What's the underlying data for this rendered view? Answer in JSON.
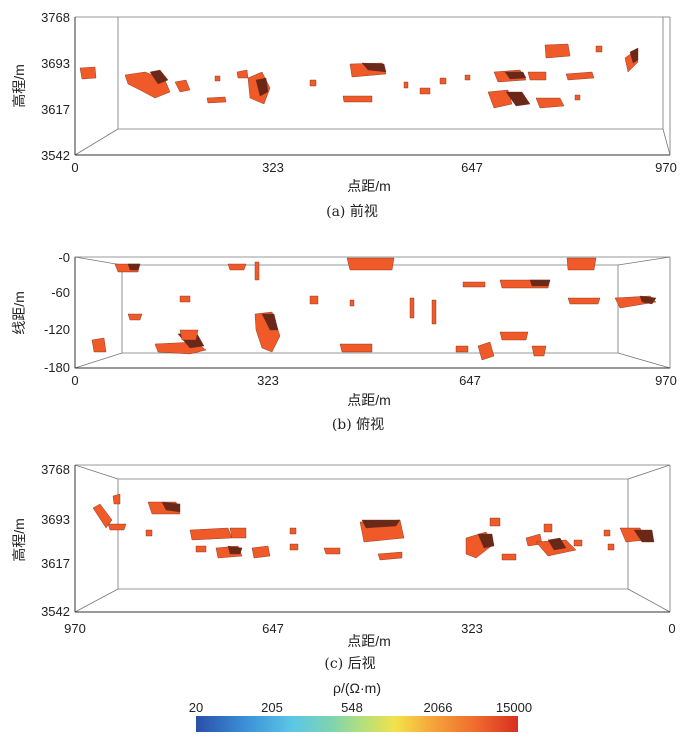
{
  "panels": {
    "front": {
      "caption": "(a) 前视",
      "ylabel": "高程/m",
      "xlabel": "点距/m",
      "yticks": [
        "3768",
        "3693",
        "3617",
        "3542"
      ],
      "xticks": [
        "0",
        "323",
        "647",
        "970"
      ]
    },
    "top": {
      "caption": "(b) 俯视",
      "ylabel": "线距/m",
      "xlabel": "点距/m",
      "yticks": [
        "-0",
        "-60",
        "-120",
        "-180"
      ],
      "xticks": [
        "0",
        "323",
        "647",
        "970"
      ]
    },
    "back": {
      "caption": "(c) 后视",
      "ylabel": "高程/m",
      "xlabel": "点距/m",
      "yticks": [
        "3768",
        "3693",
        "3617",
        "3542"
      ],
      "xticks": [
        "970",
        "647",
        "323",
        "0"
      ]
    }
  },
  "colorbar": {
    "title": "ρ/(Ω·m)",
    "ticks": [
      "20",
      "205",
      "548",
      "2066",
      "15000"
    ],
    "colors": [
      "#2b4ea8",
      "#3a8fd6",
      "#5bc7e6",
      "#7fd3b0",
      "#b5e07a",
      "#f2e24a",
      "#f5a23a",
      "#ef6a2e",
      "#d7301f"
    ]
  },
  "anomaly_color": "#f05a28",
  "anomaly_edge_color": "#6a2818"
}
